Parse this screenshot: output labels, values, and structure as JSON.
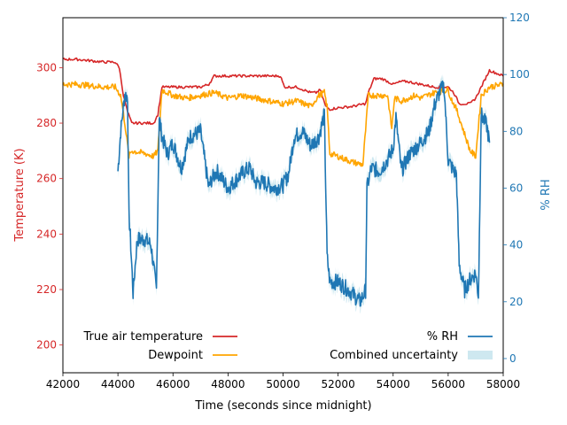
{
  "chart_data": {
    "type": "line",
    "xlabel": "Time (seconds since midnight)",
    "ylabel_left": "Temperature (K)",
    "ylabel_right": "% RH",
    "xlim": [
      42000,
      58000
    ],
    "ylim_left": [
      190,
      318
    ],
    "ylim_right": [
      -5,
      120
    ],
    "x_ticks": [
      42000,
      44000,
      46000,
      48000,
      50000,
      52000,
      54000,
      56000,
      58000
    ],
    "y_left_ticks": [
      200,
      220,
      240,
      260,
      280,
      300
    ],
    "y_right_ticks": [
      0,
      20,
      40,
      60,
      80,
      100,
      120
    ],
    "colors": {
      "temperature": "#d62728",
      "dewpoint": "#ffa500",
      "rh": "#1f77b4",
      "uncertainty": "#add8e6"
    },
    "legend_left": [
      {
        "label": "True air temperature",
        "series": "temperature"
      },
      {
        "label": "Dewpoint",
        "series": "dewpoint"
      }
    ],
    "legend_right": [
      {
        "label": "% RH",
        "series": "rh"
      },
      {
        "label": "Combined uncertainty",
        "series": "uncertainty"
      }
    ],
    "series": [
      {
        "name": "True air temperature",
        "key": "temperature",
        "axis": "left",
        "x": [
          42000,
          42500,
          43000,
          43500,
          43900,
          44050,
          44200,
          44350,
          44500,
          44700,
          45000,
          45300,
          45450,
          45600,
          45800,
          46100,
          46500,
          47000,
          47300,
          47500,
          48000,
          48500,
          49000,
          49500,
          49900,
          50050,
          50500,
          51000,
          51200,
          51350,
          51550,
          51700,
          52000,
          52500,
          53000,
          53100,
          53300,
          53600,
          54000,
          54300,
          54500,
          55000,
          55500,
          56000,
          56200,
          56400,
          56800,
          57000,
          57200,
          57500,
          58000
        ],
        "y": [
          303,
          303,
          302.5,
          302,
          302,
          300,
          290,
          284,
          280,
          280,
          280,
          280,
          283,
          293,
          293,
          293,
          293,
          293,
          294,
          297,
          297,
          297,
          297,
          297,
          297,
          293,
          293,
          291,
          291,
          292,
          286,
          285,
          285.5,
          286,
          287,
          291,
          296,
          296,
          294,
          295,
          295,
          294,
          293,
          293,
          291,
          287,
          287,
          289,
          293,
          299,
          297
        ]
      },
      {
        "name": "Dewpoint",
        "key": "dewpoint",
        "axis": "left",
        "x": [
          42000,
          42500,
          43000,
          43500,
          43900,
          44100,
          44250,
          44400,
          44500,
          45000,
          45300,
          45450,
          45600,
          46000,
          46500,
          47000,
          47500,
          48000,
          48500,
          49000,
          49500,
          50000,
          50500,
          51000,
          51300,
          51500,
          51600,
          51700,
          52000,
          52500,
          52900,
          53100,
          53300,
          53800,
          53950,
          54050,
          54300,
          54800,
          55000,
          55500,
          56000,
          56100,
          56300,
          56800,
          57000,
          57200,
          57500,
          58000
        ],
        "y": [
          294,
          294,
          293.5,
          293,
          293,
          290,
          280,
          268,
          270,
          269,
          268,
          270,
          292,
          290,
          289,
          290,
          291,
          289,
          290,
          289,
          288,
          287,
          288,
          286,
          290,
          291,
          286,
          269,
          268,
          266,
          265,
          290,
          290,
          290,
          278,
          289,
          288,
          290,
          289,
          291,
          292,
          289,
          285,
          270,
          268,
          290,
          293,
          294
        ]
      },
      {
        "name": "% RH",
        "key": "rh",
        "axis": "right",
        "x": [
          44000,
          44100,
          44250,
          44350,
          44400,
          44450,
          44550,
          44700,
          45000,
          45200,
          45400,
          45500,
          45600,
          45800,
          46000,
          46300,
          46600,
          47000,
          47300,
          47400,
          47600,
          48000,
          48300,
          48600,
          48800,
          49000,
          49300,
          49700,
          50000,
          50200,
          50400,
          50700,
          51000,
          51300,
          51500,
          51600,
          51700,
          52000,
          52400,
          52800,
          53000,
          53050,
          53200,
          53500,
          53800,
          54000,
          54100,
          54300,
          54600,
          55000,
          55300,
          55500,
          55700,
          55850,
          56000,
          56200,
          56300,
          56400,
          56600,
          56800,
          57000,
          57100,
          57200,
          57400,
          57500
        ],
        "y": [
          66,
          80,
          93,
          92,
          50,
          43,
          23,
          42,
          42,
          40,
          24,
          85,
          78,
          72,
          76,
          67,
          78,
          80,
          60,
          63,
          66,
          60,
          63,
          66,
          67,
          62,
          62,
          60,
          61,
          65,
          78,
          80,
          75,
          78,
          86,
          36,
          27,
          27,
          24,
          20,
          24,
          60,
          67,
          66,
          70,
          74,
          85,
          66,
          72,
          76,
          80,
          89,
          94,
          96,
          70,
          66,
          65,
          33,
          24,
          28,
          30,
          22,
          86,
          82,
          76
        ]
      },
      {
        "name": "Combined uncertainty",
        "key": "uncertainty",
        "axis": "right",
        "band_of": "rh",
        "plus_minus": 2.5
      }
    ]
  }
}
